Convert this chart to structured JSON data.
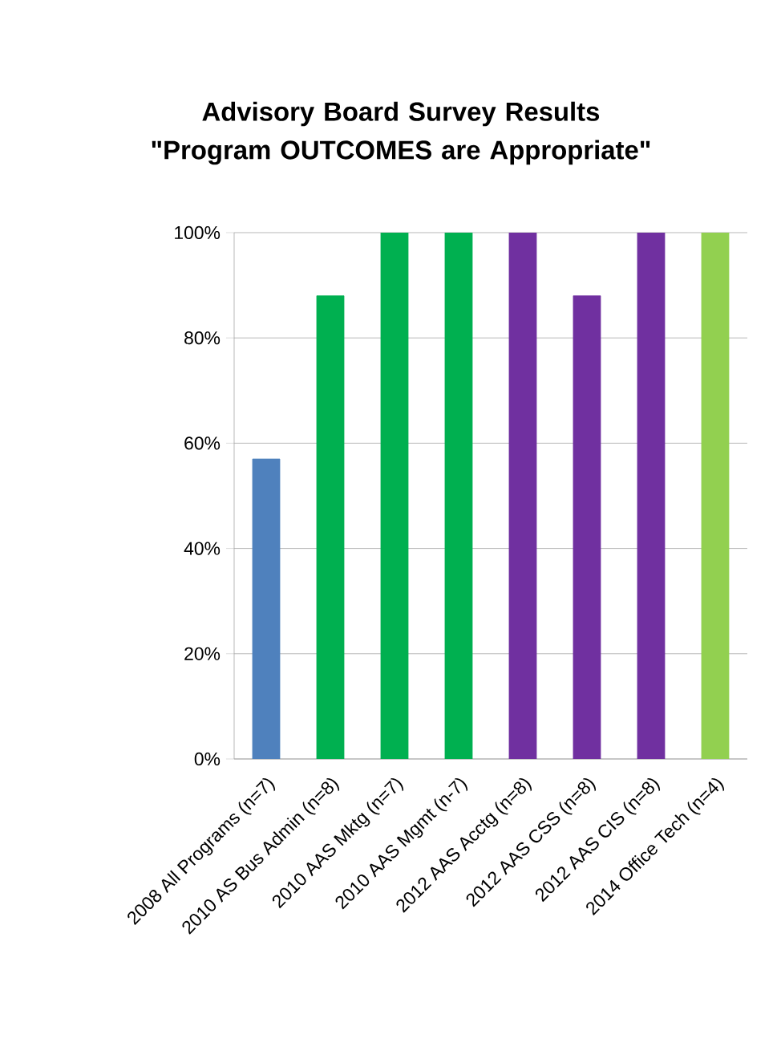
{
  "chart_data": {
    "type": "bar",
    "title": "Advisory Board Survey Results \"Program OUTCOMES are Appropriate\"",
    "categories": [
      "2008 All Programs (n=7)",
      "2010 AS Bus Admin (n=8)",
      "2010 AAS Mktg (n=7)",
      "2010 AAS Mgmt (n-7)",
      "2012 AAS Acctg (n=8)",
      "2012 AAS CSS (n=8)",
      "2012 AAS CIS (n=8)",
      "2014 Office Tech (n=4)"
    ],
    "values": [
      57,
      88,
      100,
      100,
      100,
      88,
      100,
      100
    ],
    "colors": [
      "#4f81bd",
      "#00b050",
      "#00b050",
      "#00b050",
      "#7030a0",
      "#7030a0",
      "#7030a0",
      "#92d050"
    ],
    "ylim": [
      0,
      100
    ],
    "yticks": [
      {
        "value": 0,
        "label": "0%"
      },
      {
        "value": 20,
        "label": "20%"
      },
      {
        "value": 40,
        "label": "40%"
      },
      {
        "value": 60,
        "label": "60%"
      },
      {
        "value": 80,
        "label": "80%"
      },
      {
        "value": 100,
        "label": "100%"
      }
    ],
    "grid": "y"
  }
}
